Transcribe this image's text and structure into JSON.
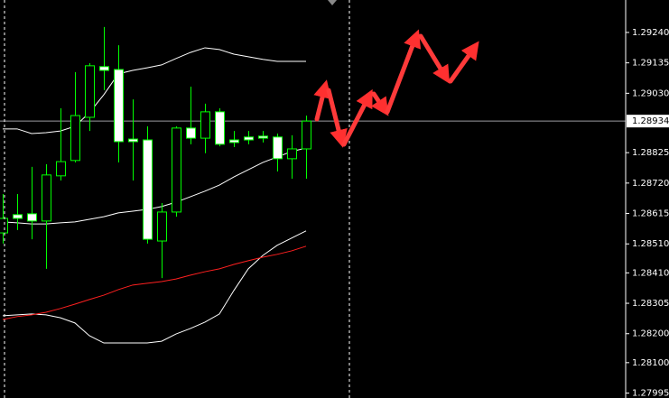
{
  "chart_data": {
    "type": "candlestick",
    "open": [
      1.28548,
      1.28611,
      1.28614,
      1.28589,
      1.28745,
      1.28798,
      1.28947,
      1.29122,
      1.29112,
      1.28872,
      1.28869,
      1.2852,
      1.2862,
      1.2891,
      1.28875,
      1.28966,
      1.28869,
      1.28879,
      1.28882,
      1.28879,
      1.28804,
      1.28838
    ],
    "high": [
      1.28682,
      1.28682,
      1.28776,
      1.28785,
      1.28978,
      1.29103,
      1.29134,
      1.29259,
      1.29196,
      1.29009,
      1.28916,
      1.28651,
      1.28916,
      1.29053,
      1.28994,
      1.28978,
      1.289,
      1.289,
      1.289,
      1.28891,
      1.28885,
      1.28953
    ],
    "low": [
      1.28511,
      1.28558,
      1.28526,
      1.28424,
      1.28729,
      1.28791,
      1.289,
      1.29041,
      1.28791,
      1.28729,
      1.28511,
      1.28392,
      1.28604,
      1.28854,
      1.28823,
      1.28847,
      1.28844,
      1.28854,
      1.2886,
      1.2876,
      1.28735,
      1.28735
    ],
    "close": [
      1.28598,
      1.28598,
      1.28589,
      1.28748,
      1.28794,
      1.28953,
      1.29125,
      1.29109,
      1.28863,
      1.28863,
      1.28526,
      1.2862,
      1.2891,
      1.28875,
      1.28966,
      1.28854,
      1.2886,
      1.28869,
      1.28875,
      1.28804,
      1.28838,
      1.28934
    ],
    "up_color": "#000000",
    "down_color": "#ffffff",
    "wick_color": "#00ff00",
    "series": [
      {
        "color": "#ffffff",
        "values": [
          1.28907,
          1.28907,
          1.28891,
          1.28894,
          1.289,
          1.28916,
          1.28963,
          1.29025,
          1.29097,
          1.29109,
          1.29118,
          1.29128,
          1.2915,
          1.29171,
          1.29187,
          1.29181,
          1.29165,
          1.29156,
          1.29147,
          1.2914,
          1.2914,
          1.2914
        ]
      },
      {
        "color": "#ffffff",
        "values": [
          1.28586,
          1.28583,
          1.28579,
          1.28579,
          1.28583,
          1.28586,
          1.28595,
          1.28604,
          1.28617,
          1.28623,
          1.28629,
          1.28639,
          1.28654,
          1.28673,
          1.28692,
          1.28713,
          1.28741,
          1.28766,
          1.28791,
          1.2881,
          1.28829,
          1.28841
        ]
      },
      {
        "color": "#ffffff",
        "values": [
          1.28262,
          1.28265,
          1.28268,
          1.28265,
          1.28255,
          1.28237,
          1.28193,
          1.28168,
          1.28168,
          1.28168,
          1.28168,
          1.28174,
          1.28199,
          1.28218,
          1.2824,
          1.28268,
          1.28349,
          1.28424,
          1.2847,
          1.28505,
          1.2853,
          1.28555
        ]
      },
      {
        "color": "#ff2020",
        "values": [
          1.28249,
          1.28259,
          1.28265,
          1.28274,
          1.28287,
          1.28302,
          1.28318,
          1.28333,
          1.28352,
          1.28368,
          1.28374,
          1.2838,
          1.28389,
          1.28402,
          1.28414,
          1.28424,
          1.28439,
          1.28452,
          1.28464,
          1.28474,
          1.28486,
          1.28502
        ]
      }
    ],
    "current_price": 1.28934,
    "ylim": [
      1.27978,
      1.29352
    ],
    "yticks": [
      {
        "value": 1.2924,
        "label": "1.29240"
      },
      1.29135,
      {
        "value": 1.2903,
        "label": "1.29030"
      },
      1.28825,
      {
        "value": 1.2872,
        "label": "1.28720"
      },
      1.28615,
      {
        "value": 1.2851,
        "label": "1.28510"
      },
      {
        "value": 1.2841,
        "label": "1.28410"
      },
      1.28305,
      {
        "value": 1.282,
        "label": "1.28200"
      },
      {
        "value": 1.281,
        "label": "1.28100"
      },
      1.27995
    ]
  }
}
